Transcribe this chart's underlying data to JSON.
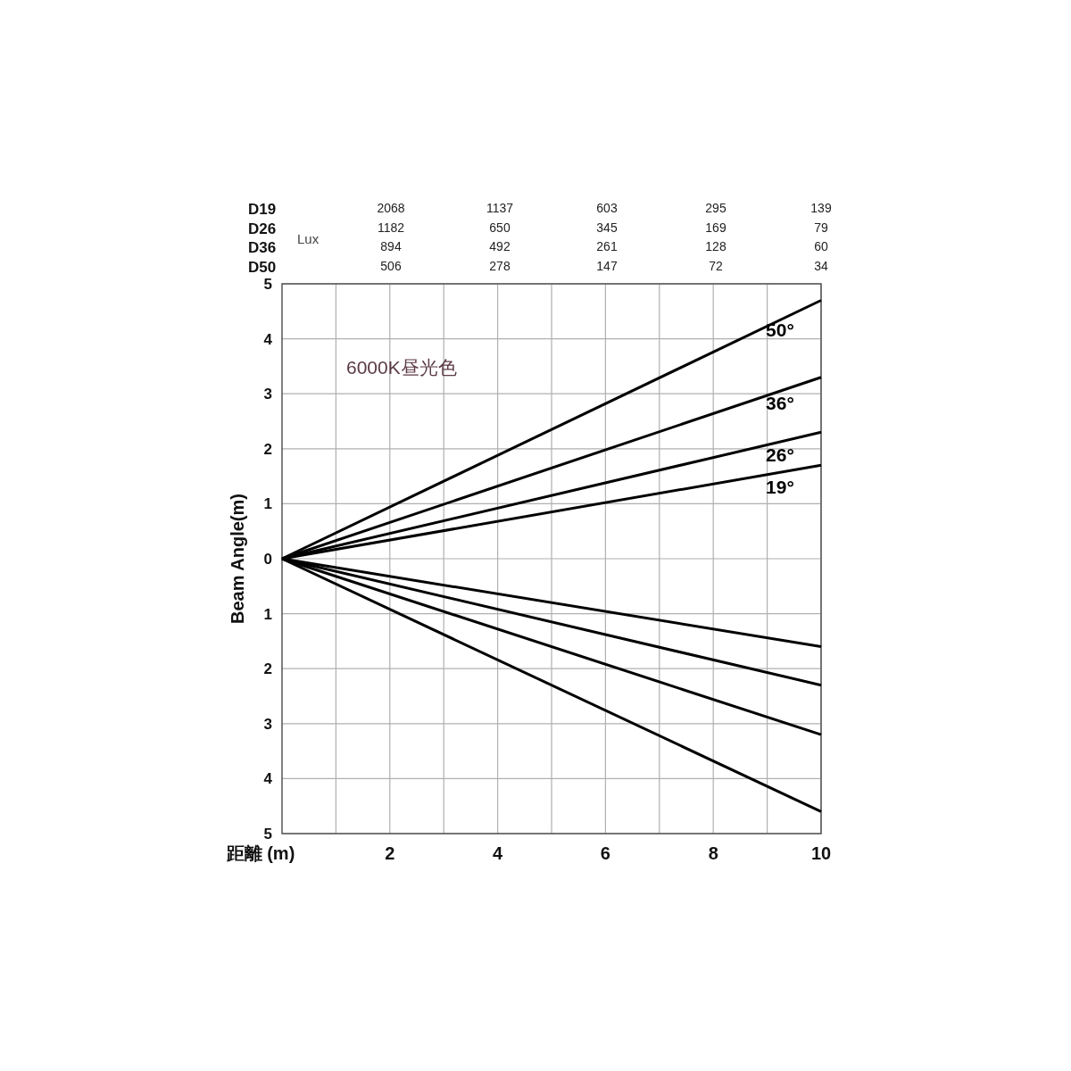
{
  "chart_data": [
    {
      "type": "other",
      "annotations": [
        "D19",
        "D26",
        "D36",
        "D50",
        "Lux",
        "2068",
        "1137",
        "603",
        "295",
        "139",
        "1182",
        "650",
        "345",
        "169",
        "79",
        "894",
        "492",
        "261",
        "128",
        "60",
        "506",
        "278",
        "147",
        "72",
        "34"
      ]
    },
    {
      "type": "line",
      "xlabel": "距離 (m)",
      "ylabel": "Beam Angle(m)",
      "xlim": [
        0,
        10
      ],
      "ylim": [
        -5,
        5
      ],
      "xticks": [
        {
          "value": 1,
          "label": null
        },
        2,
        {
          "value": 3,
          "label": null
        },
        4,
        {
          "value": 5,
          "label": null
        },
        6,
        {
          "value": 7,
          "label": null
        },
        8,
        {
          "value": 9,
          "label": null
        },
        10
      ],
      "yticks": [
        5,
        4,
        3,
        2,
        1,
        0,
        {
          "value": -1,
          "label": "1"
        },
        {
          "value": -2,
          "label": "2"
        },
        {
          "value": -3,
          "label": "3"
        },
        {
          "value": -4,
          "label": "4"
        },
        {
          "value": -5,
          "label": "5"
        }
      ],
      "grid": true,
      "marker": "none",
      "line_style": "solid",
      "annotations": [
        "6000K昼光色"
      ],
      "x": [
        0,
        10
      ],
      "series": [
        {
          "name": "50°",
          "color": "#000000",
          "values": [
            0,
            4.7
          ]
        },
        {
          "name": "36°",
          "color": "#000000",
          "values": [
            0,
            3.3
          ]
        },
        {
          "name": "26°",
          "color": "#000000",
          "values": [
            0,
            2.3
          ]
        },
        {
          "name": "19°",
          "color": "#000000",
          "values": [
            0,
            1.7
          ]
        },
        {
          "color": "#000000",
          "values": [
            0,
            -1.6
          ]
        },
        {
          "color": "#000000",
          "values": [
            0,
            -2.3
          ]
        },
        {
          "color": "#000000",
          "values": [
            0,
            -3.2
          ]
        },
        {
          "color": "#000000",
          "values": [
            0,
            -4.6
          ]
        }
      ]
    }
  ]
}
